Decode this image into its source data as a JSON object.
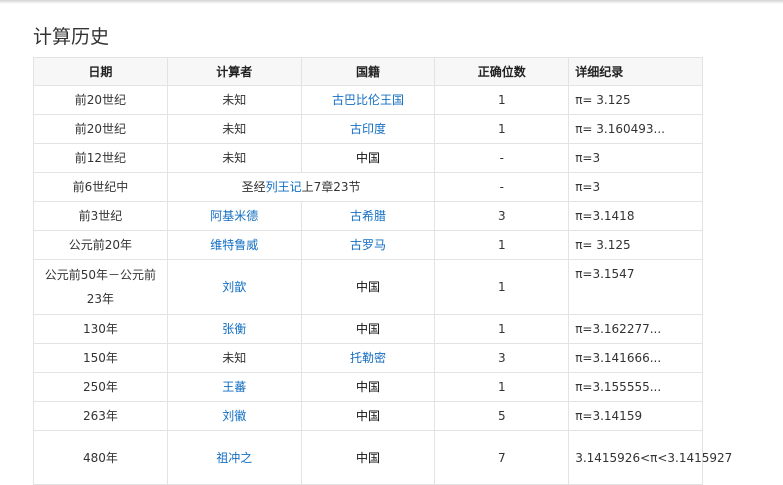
{
  "title": "计算历史",
  "headers": [
    "日期",
    "计算者",
    "国籍",
    "正确位数",
    "详细纪录"
  ],
  "link_color": "#136ec2",
  "rows": [
    {
      "date": "前20世纪",
      "person": "未知",
      "person_link": false,
      "country": "古巴比伦王国",
      "country_link": true,
      "digits": "1",
      "record": "π= 3.125"
    },
    {
      "date": "前20世纪",
      "person": "未知",
      "person_link": false,
      "country": "古印度",
      "country_link": true,
      "digits": "1",
      "record": "π= 3.160493..."
    },
    {
      "date": "前12世纪",
      "person": "未知",
      "person_link": false,
      "country": "中国",
      "country_link": false,
      "digits": "-",
      "record": "π=3"
    },
    {
      "date": "前6世纪中",
      "merged_pre": "圣经",
      "merged_link": "列王记",
      "merged_post": "上7章23节",
      "digits": "-",
      "record": "π=3"
    },
    {
      "date": "前3世纪",
      "person": "阿基米德",
      "person_link": true,
      "country": "古希腊",
      "country_link": true,
      "digits": "3",
      "record": "π=3.1418"
    },
    {
      "date": "公元前20年",
      "person": "维特鲁威",
      "person_link": true,
      "country": "古罗马",
      "country_link": true,
      "digits": "1",
      "record": "π= 3.125"
    },
    {
      "date": "公元前50年－公元前23年",
      "person": "刘歆",
      "person_link": true,
      "country": "中国",
      "country_link": false,
      "digits": "1",
      "record": "π=3.1547"
    },
    {
      "date": "130年",
      "person": "张衡",
      "person_link": true,
      "country": "中国",
      "country_link": false,
      "digits": "1",
      "record": "π=3.162277..."
    },
    {
      "date": "150年",
      "person": "未知",
      "person_link": false,
      "country": "托勒密",
      "country_link": true,
      "digits": "3",
      "record": "π=3.141666..."
    },
    {
      "date": "250年",
      "person": "王蕃",
      "person_link": true,
      "country": "中国",
      "country_link": false,
      "digits": "1",
      "record": "π=3.155555..."
    },
    {
      "date": "263年",
      "person": "刘徽",
      "person_link": true,
      "country": "中国",
      "country_link": false,
      "digits": "5",
      "record": "π=3.14159"
    },
    {
      "date": "480年",
      "person": "祖冲之",
      "person_link": true,
      "country": "中国",
      "country_link": false,
      "digits": "7",
      "record": "3.1415926<π<3.1415927"
    }
  ]
}
